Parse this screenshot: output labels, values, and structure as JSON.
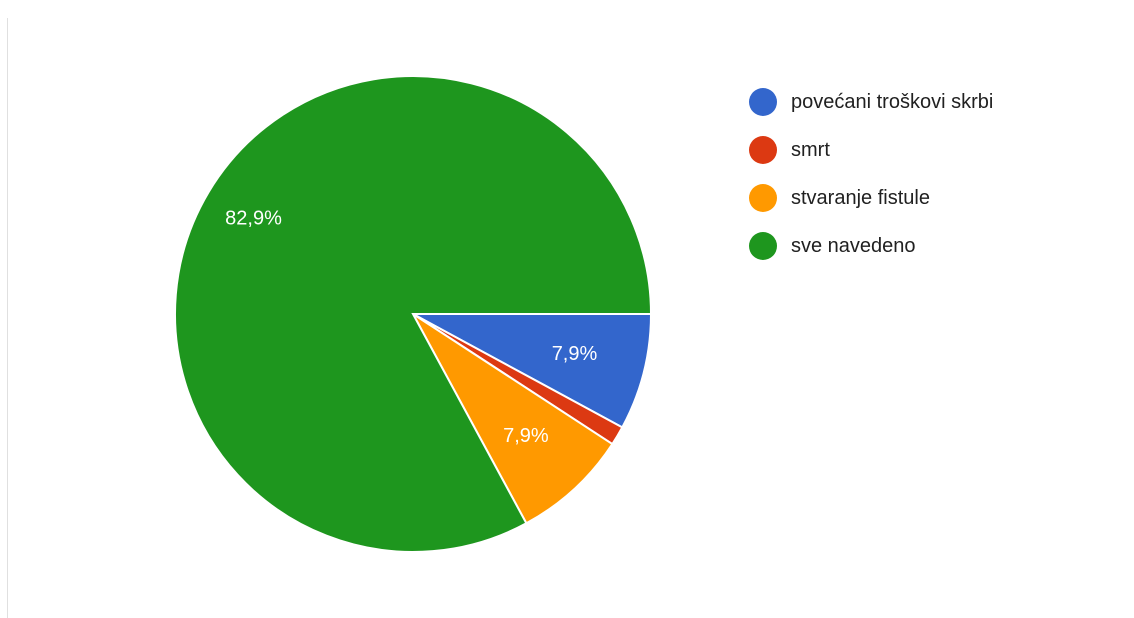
{
  "chart_data": {
    "type": "pie",
    "title": "",
    "categories": [
      "povećani troškovi skrbi",
      "smrt",
      "stvaranje fistule",
      "sve navedeno"
    ],
    "values": [
      7.9,
      1.3,
      7.9,
      82.9
    ],
    "value_labels": [
      "7,9%",
      "",
      "7,9%",
      "82,9%"
    ],
    "colors": [
      "#3366cc",
      "#dc3912",
      "#ff9900",
      "#1e961e"
    ],
    "legend_position": "right"
  }
}
